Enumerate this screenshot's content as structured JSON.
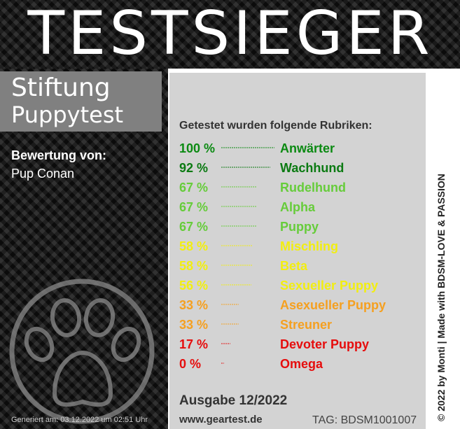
{
  "banner": {
    "title": "TESTSIEGER"
  },
  "brand": {
    "line1": "Stiftung",
    "line2": "Puppytest"
  },
  "evaluation": {
    "label": "Bewertung von:",
    "name": "Pup Conan"
  },
  "generated": "Generiert am: 03.12.2022 um 02:51 Uhr",
  "rubriken": {
    "heading": "Getestet wurden folgende Rubriken:",
    "items": [
      {
        "percent": "100 %",
        "name": "Anwärter",
        "value": 100,
        "color": "#0b8a12"
      },
      {
        "percent": "92 %",
        "name": "Wachhund",
        "value": 92,
        "color": "#0b7a12"
      },
      {
        "percent": "67 %",
        "name": "Rudelhund",
        "value": 67,
        "color": "#66cc3a"
      },
      {
        "percent": "67 %",
        "name": "Alpha",
        "value": 67,
        "color": "#66cc3a"
      },
      {
        "percent": "67 %",
        "name": "Puppy",
        "value": 67,
        "color": "#66cc3a"
      },
      {
        "percent": "58 %",
        "name": "Mischling",
        "value": 58,
        "color": "#f2ee10"
      },
      {
        "percent": "58 %",
        "name": "Beta",
        "value": 58,
        "color": "#f2ee10"
      },
      {
        "percent": "56 %",
        "name": "Sexueller Puppy",
        "value": 56,
        "color": "#f2ee10"
      },
      {
        "percent": "33 %",
        "name": "Asexueller Puppy",
        "value": 33,
        "color": "#f5a020"
      },
      {
        "percent": "33 %",
        "name": "Streuner",
        "value": 33,
        "color": "#f5a020"
      },
      {
        "percent": "17 %",
        "name": "Devoter Puppy",
        "value": 17,
        "color": "#e60d0d"
      },
      {
        "percent": "0 %",
        "name": "Omega",
        "value": 0,
        "color": "#e60d0d"
      }
    ]
  },
  "issue": "Ausgabe 12/2022",
  "site": "www.geartest.de",
  "tag": "TAG: BDSM1001007",
  "side_text": "© 2022 by Monti | Made with BDSM-LOVE & PASSION"
}
